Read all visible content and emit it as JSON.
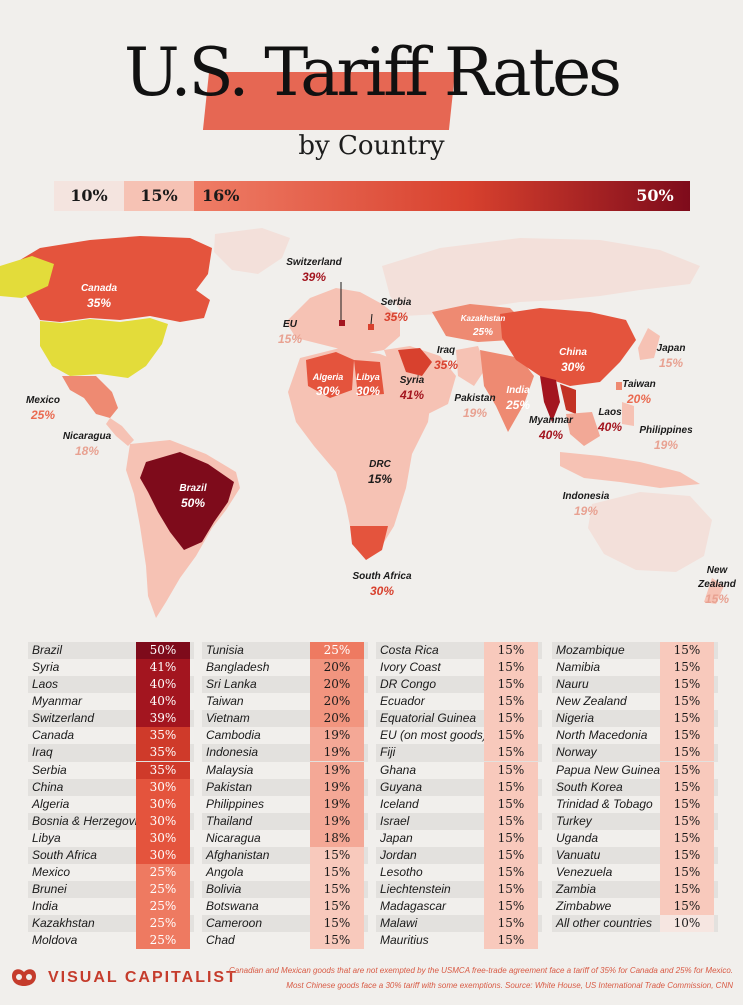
{
  "header": {
    "title": "U.S. Tariff Rates",
    "subtitle": "by Country"
  },
  "legend": [
    {
      "label": "10%",
      "color": "#f4e4df",
      "text_color": "#1a1a1a"
    },
    {
      "label": "15%",
      "color": "#f6c2b4",
      "text_color": "#1a1a1a"
    },
    {
      "label": "16%",
      "color": "#ea6a50",
      "text_color": "#1a1a1a"
    },
    {
      "label": "50%",
      "color": "#7e0b1b",
      "text_color": "#ffffff"
    }
  ],
  "map_labels": {
    "canada": {
      "name": "Canada",
      "value": "35%"
    },
    "switzerland": {
      "name": "Switzerland",
      "value": "39%"
    },
    "serbia": {
      "name": "Serbia",
      "value": "35%"
    },
    "eu": {
      "name": "EU",
      "value": "15%"
    },
    "kazakhstan": {
      "name": "Kazakhstan",
      "value": "25%"
    },
    "japan": {
      "name": "Japan",
      "value": "15%"
    },
    "china": {
      "name": "China",
      "value": "30%"
    },
    "iraq": {
      "name": "Iraq",
      "value": "35%"
    },
    "algeria": {
      "name": "Algeria",
      "value": "30%"
    },
    "libya": {
      "name": "Libya",
      "value": "30%"
    },
    "syria": {
      "name": "Syria",
      "value": "41%"
    },
    "pakistan": {
      "name": "Pakistan",
      "value": "19%"
    },
    "india": {
      "name": "India",
      "value": "25%"
    },
    "taiwan": {
      "name": "Taiwan",
      "value": "20%"
    },
    "laos": {
      "name": "Laos",
      "value": "40%"
    },
    "myanmar": {
      "name": "Myanmar",
      "value": "40%"
    },
    "philippines": {
      "name": "Philippines",
      "value": "19%"
    },
    "mexico": {
      "name": "Mexico",
      "value": "25%"
    },
    "nicaragua": {
      "name": "Nicaragua",
      "value": "18%"
    },
    "brazil": {
      "name": "Brazil",
      "value": "50%"
    },
    "drc": {
      "name": "DRC",
      "value": "15%"
    },
    "indonesia": {
      "name": "Indonesia",
      "value": "19%"
    },
    "south_africa": {
      "name": "South Africa",
      "value": "30%"
    },
    "new_zealand": {
      "name": "New\nZealand",
      "value": "15%"
    }
  },
  "chart_data": {
    "type": "table",
    "title": "U.S. Tariff Rates by Country",
    "columns": [
      [
        {
          "country": "Brazil",
          "rate": "50%"
        },
        {
          "country": "Syria",
          "rate": "41%"
        },
        {
          "country": "Laos",
          "rate": "40%"
        },
        {
          "country": "Myanmar",
          "rate": "40%"
        },
        {
          "country": "Switzerland",
          "rate": "39%"
        },
        {
          "country": "Canada",
          "rate": "35%"
        },
        {
          "country": "Iraq",
          "rate": "35%"
        },
        {
          "country": "Serbia",
          "rate": "35%"
        },
        {
          "country": "China",
          "rate": "30%"
        },
        {
          "country": "Algeria",
          "rate": "30%"
        },
        {
          "country": "Bosnia & Herzegovina",
          "rate": "30%"
        },
        {
          "country": "Libya",
          "rate": "30%"
        },
        {
          "country": "South Africa",
          "rate": "30%"
        },
        {
          "country": "Mexico",
          "rate": "25%"
        },
        {
          "country": "Brunei",
          "rate": "25%"
        },
        {
          "country": "India",
          "rate": "25%"
        },
        {
          "country": "Kazakhstan",
          "rate": "25%"
        },
        {
          "country": "Moldova",
          "rate": "25%"
        }
      ],
      [
        {
          "country": "Tunisia",
          "rate": "25%"
        },
        {
          "country": "Bangladesh",
          "rate": "20%"
        },
        {
          "country": "Sri Lanka",
          "rate": "20%"
        },
        {
          "country": "Taiwan",
          "rate": "20%"
        },
        {
          "country": "Vietnam",
          "rate": "20%"
        },
        {
          "country": "Cambodia",
          "rate": "19%"
        },
        {
          "country": "Indonesia",
          "rate": "19%"
        },
        {
          "country": "Malaysia",
          "rate": "19%"
        },
        {
          "country": "Pakistan",
          "rate": "19%"
        },
        {
          "country": "Philippines",
          "rate": "19%"
        },
        {
          "country": "Thailand",
          "rate": "19%"
        },
        {
          "country": "Nicaragua",
          "rate": "18%"
        },
        {
          "country": "Afghanistan",
          "rate": "15%"
        },
        {
          "country": "Angola",
          "rate": "15%"
        },
        {
          "country": "Bolivia",
          "rate": "15%"
        },
        {
          "country": "Botswana",
          "rate": "15%"
        },
        {
          "country": "Cameroon",
          "rate": "15%"
        },
        {
          "country": "Chad",
          "rate": "15%"
        }
      ],
      [
        {
          "country": "Costa Rica",
          "rate": "15%"
        },
        {
          "country": "Ivory Coast",
          "rate": "15%"
        },
        {
          "country": "DR Congo",
          "rate": "15%"
        },
        {
          "country": "Ecuador",
          "rate": "15%"
        },
        {
          "country": "Equatorial Guinea",
          "rate": "15%"
        },
        {
          "country": "EU (on most goods)",
          "rate": "15%"
        },
        {
          "country": "Fiji",
          "rate": "15%"
        },
        {
          "country": "Ghana",
          "rate": "15%"
        },
        {
          "country": "Guyana",
          "rate": "15%"
        },
        {
          "country": "Iceland",
          "rate": "15%"
        },
        {
          "country": "Israel",
          "rate": "15%"
        },
        {
          "country": "Japan",
          "rate": "15%"
        },
        {
          "country": "Jordan",
          "rate": "15%"
        },
        {
          "country": "Lesotho",
          "rate": "15%"
        },
        {
          "country": "Liechtenstein",
          "rate": "15%"
        },
        {
          "country": "Madagascar",
          "rate": "15%"
        },
        {
          "country": "Malawi",
          "rate": "15%"
        },
        {
          "country": "Mauritius",
          "rate": "15%"
        }
      ],
      [
        {
          "country": "Mozambique",
          "rate": "15%"
        },
        {
          "country": "Namibia",
          "rate": "15%"
        },
        {
          "country": "Nauru",
          "rate": "15%"
        },
        {
          "country": "New Zealand",
          "rate": "15%"
        },
        {
          "country": "Nigeria",
          "rate": "15%"
        },
        {
          "country": "North Macedonia",
          "rate": "15%"
        },
        {
          "country": "Norway",
          "rate": "15%"
        },
        {
          "country": "Papua New Guinea",
          "rate": "15%"
        },
        {
          "country": "South Korea",
          "rate": "15%"
        },
        {
          "country": "Trinidad & Tobago",
          "rate": "15%"
        },
        {
          "country": "Turkey",
          "rate": "15%"
        },
        {
          "country": "Uganda",
          "rate": "15%"
        },
        {
          "country": "Vanuatu",
          "rate": "15%"
        },
        {
          "country": "Venezuela",
          "rate": "15%"
        },
        {
          "country": "Zambia",
          "rate": "15%"
        },
        {
          "country": "Zimbabwe",
          "rate": "15%"
        },
        {
          "country": "All other countries",
          "rate": "10%"
        }
      ]
    ]
  },
  "footer": {
    "brand": "VISUAL CAPITALIST",
    "note_1": "Canadian and Mexican goods that are not exempted by the USMCA free-trade agreement face a tariff of 35% for Canada and 25% for Mexico.",
    "note_2": "Most Chinese goods face a 30% tariff with some exemptions. Source: White House, US International Trade Commission, CNN"
  },
  "colors": {
    "background": "#f1efec",
    "usa": "#e3dc3a",
    "accent": "#c53c2c",
    "land_default": "#f3e0da"
  }
}
